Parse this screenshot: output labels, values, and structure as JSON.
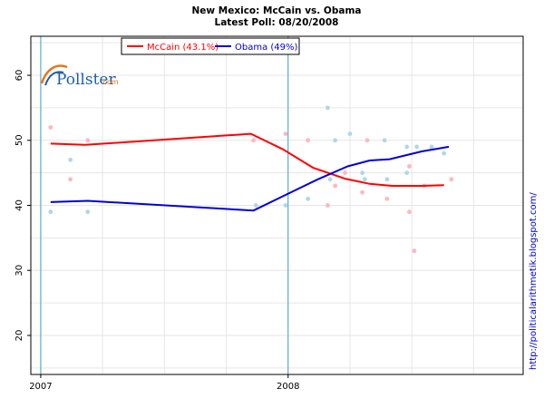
{
  "chart_data": {
    "type": "line",
    "title": "New Mexico: McCain vs. Obama",
    "subtitle": "Latest Poll: 08/20/2008",
    "xlabel": "",
    "ylabel": "",
    "x_domain": [
      2006.96,
      2008.95
    ],
    "ylim": [
      14,
      66
    ],
    "x_ticks": [
      {
        "value": 2007,
        "label": "2007"
      },
      {
        "value": 2008,
        "label": "2008"
      }
    ],
    "y_ticks": [
      20,
      30,
      40,
      50,
      60
    ],
    "x_vlines": [
      2007,
      2008
    ],
    "grid": true,
    "legend_position": "top-left",
    "series": [
      {
        "name": "McCain",
        "legend_label": "McCain (43.1%)",
        "color": "#ff0000",
        "point_color": "#ffb6c1",
        "trend": [
          [
            2007.04,
            49.5
          ],
          [
            2007.18,
            49.3
          ],
          [
            2007.85,
            51.0
          ],
          [
            2007.98,
            48.6
          ],
          [
            2008.1,
            45.8
          ],
          [
            2008.23,
            44.1
          ],
          [
            2008.33,
            43.3
          ],
          [
            2008.42,
            43.0
          ],
          [
            2008.54,
            43.0
          ],
          [
            2008.63,
            43.1
          ]
        ],
        "polls": [
          [
            2007.04,
            52
          ],
          [
            2007.12,
            44
          ],
          [
            2007.19,
            50
          ],
          [
            2007.86,
            50
          ],
          [
            2007.99,
            51
          ],
          [
            2008.08,
            50
          ],
          [
            2008.16,
            40
          ],
          [
            2008.19,
            43
          ],
          [
            2008.23,
            45
          ],
          [
            2008.3,
            42
          ],
          [
            2008.32,
            50
          ],
          [
            2008.4,
            41
          ],
          [
            2008.49,
            39
          ],
          [
            2008.49,
            46
          ],
          [
            2008.51,
            33
          ],
          [
            2008.55,
            43
          ],
          [
            2008.66,
            44
          ]
        ]
      },
      {
        "name": "Obama",
        "legend_label": "Obama (49%)",
        "color": "#0000dd",
        "point_color": "#add8e6",
        "trend": [
          [
            2007.04,
            40.5
          ],
          [
            2007.19,
            40.7
          ],
          [
            2007.86,
            39.2
          ],
          [
            2008.0,
            41.8
          ],
          [
            2008.12,
            44.0
          ],
          [
            2008.24,
            46.0
          ],
          [
            2008.33,
            46.9
          ],
          [
            2008.41,
            47.1
          ],
          [
            2008.54,
            48.3
          ],
          [
            2008.65,
            49.0
          ]
        ],
        "polls": [
          [
            2007.04,
            39
          ],
          [
            2007.12,
            47
          ],
          [
            2007.19,
            39
          ],
          [
            2007.87,
            40
          ],
          [
            2007.99,
            40
          ],
          [
            2008.08,
            41
          ],
          [
            2008.16,
            55
          ],
          [
            2008.17,
            44
          ],
          [
            2008.19,
            50
          ],
          [
            2008.25,
            51
          ],
          [
            2008.3,
            45
          ],
          [
            2008.31,
            44
          ],
          [
            2008.39,
            50
          ],
          [
            2008.4,
            44
          ],
          [
            2008.48,
            49
          ],
          [
            2008.48,
            45
          ],
          [
            2008.52,
            49
          ],
          [
            2008.58,
            49
          ],
          [
            2008.63,
            48
          ]
        ]
      }
    ]
  },
  "logo": {
    "name": "Pollster",
    "domain": ".com"
  },
  "side_url": "http://politicalarithmetik.blogspot.com/"
}
